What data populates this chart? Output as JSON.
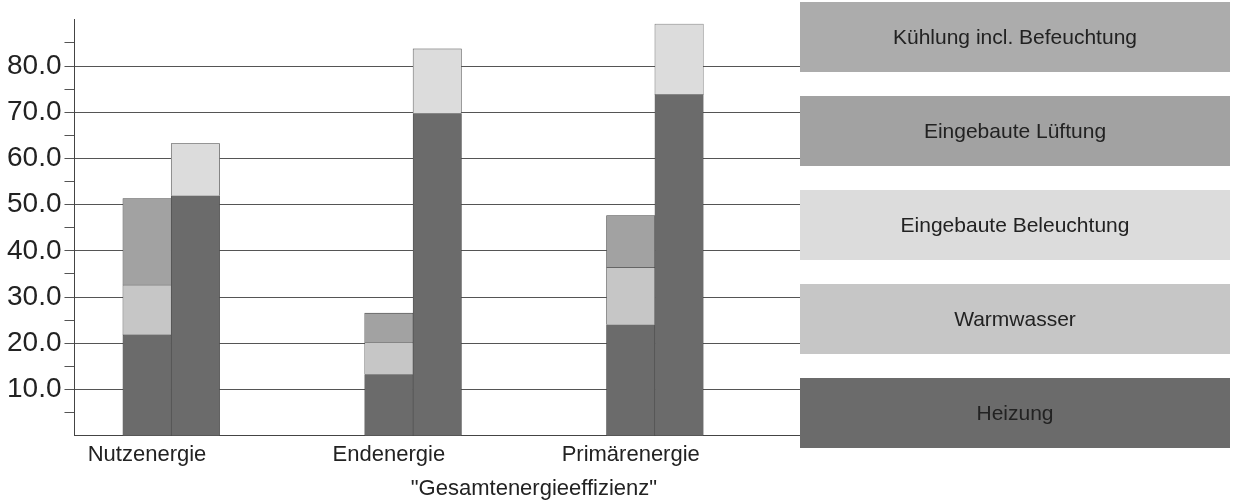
{
  "chart_data": {
    "type": "bar",
    "stacked": true,
    "xlabel": "\"Gesamtenergieeffizienz\"",
    "categories": [
      null,
      "Nutzenergie",
      null,
      null,
      null,
      null,
      "Endenergie",
      null,
      null,
      null,
      null,
      "Primärenergie",
      null,
      null,
      null
    ],
    "series": [
      {
        "name": "Heizung",
        "color": "#6b6b6b",
        "values": [
          null,
          21.8,
          51.9,
          null,
          null,
          null,
          13.2,
          69.7,
          null,
          null,
          null,
          24.0,
          73.8,
          null,
          null
        ]
      },
      {
        "name": "Warmwasser",
        "color": "#c6c6c6",
        "values": [
          null,
          10.8,
          null,
          null,
          null,
          null,
          7.0,
          null,
          null,
          null,
          null,
          12.4,
          null,
          null,
          null
        ]
      },
      {
        "name": "Eingebaute Beleuchtung",
        "color": "#dcdcdc",
        "values": [
          null,
          null,
          11.3,
          null,
          null,
          null,
          null,
          14.0,
          null,
          null,
          null,
          null,
          15.3,
          null,
          null
        ]
      },
      {
        "name": "Eingebaute Lüftung",
        "color": "#a2a2a2",
        "values": [
          null,
          18.7,
          null,
          null,
          null,
          null,
          6.3,
          null,
          null,
          null,
          null,
          11.2,
          null,
          null,
          null
        ]
      },
      {
        "name": "Kühlung incl. Befeuchtung",
        "values": [
          null,
          null,
          null,
          null,
          null,
          null,
          null,
          null,
          null,
          null,
          null,
          null,
          null,
          null,
          null
        ]
      }
    ],
    "ylim": [
      0,
      90
    ],
    "yticks": [
      {
        "value": 5,
        "label": null
      },
      {
        "value": 10,
        "label": "10.0"
      },
      {
        "value": 15,
        "label": null
      },
      {
        "value": 20,
        "label": "20.0"
      },
      {
        "value": 25,
        "label": null
      },
      {
        "value": 30,
        "label": "30.0"
      },
      {
        "value": 35,
        "label": null
      },
      {
        "value": 40,
        "label": "40.0"
      },
      {
        "value": 45,
        "label": null
      },
      {
        "value": 50,
        "label": "50.0"
      },
      {
        "value": 55,
        "label": null
      },
      {
        "value": 60,
        "label": "60.0"
      },
      {
        "value": 65,
        "label": null
      },
      {
        "value": 70,
        "label": "70.0"
      },
      {
        "value": 75,
        "label": null
      },
      {
        "value": 80,
        "label": "80.0"
      },
      {
        "value": 85,
        "label": null
      }
    ],
    "grid": "y",
    "legend": "right"
  }
}
